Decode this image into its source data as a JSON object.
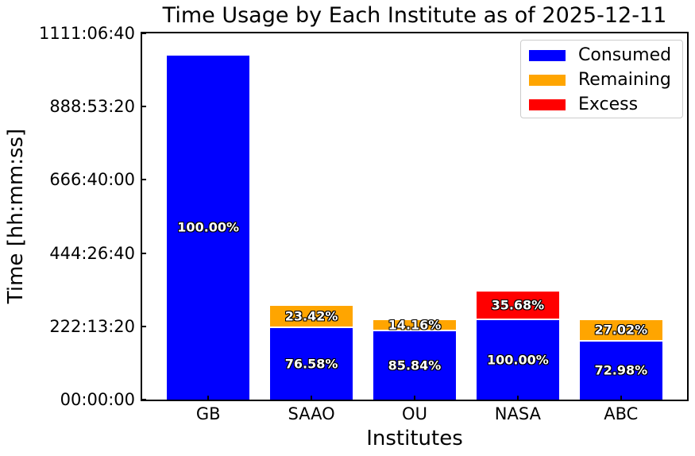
{
  "chart_data": {
    "type": "bar",
    "stacked": true,
    "title": "Time Usage by Each Institute as of 2025-12-11",
    "xlabel": "Institutes",
    "ylabel": "Time [hh:mm:ss]",
    "categories": [
      "GB",
      "SAAO",
      "OU",
      "NASA",
      "ABC"
    ],
    "y_axis": {
      "unit": "seconds",
      "ylim": [
        0,
        4000000
      ],
      "tick_seconds": [
        0,
        800000,
        1600000,
        2400000,
        3200000,
        4000000
      ],
      "tick_labels": [
        "00:00:00",
        "222:13:20",
        "444:26:40",
        "666:40:00",
        "888:53:20",
        "1111:06:40"
      ],
      "grid": false
    },
    "legend": {
      "position": "upper right",
      "entries": [
        {
          "label": "Consumed",
          "color": "#0000ff"
        },
        {
          "label": "Remaining",
          "color": "#ffa500"
        },
        {
          "label": "Excess",
          "color": "#ff0000"
        }
      ]
    },
    "bars": [
      {
        "category": "GB",
        "segments": [
          {
            "series": "Consumed",
            "seconds": 3760000,
            "label": "100.00%"
          }
        ]
      },
      {
        "category": "SAAO",
        "segments": [
          {
            "series": "Consumed",
            "seconds": 781116,
            "label": "76.58%"
          },
          {
            "series": "Remaining",
            "seconds": 238884,
            "label": "23.42%"
          }
        ]
      },
      {
        "category": "OU",
        "segments": [
          {
            "series": "Consumed",
            "seconds": 745091,
            "label": "85.84%"
          },
          {
            "series": "Remaining",
            "seconds": 122909,
            "label": "14.16%"
          }
        ]
      },
      {
        "category": "NASA",
        "segments": [
          {
            "series": "Consumed",
            "seconds": 868000,
            "label": "100.00%"
          },
          {
            "series": "Excess",
            "seconds": 309702,
            "label": "35.68%"
          }
        ]
      },
      {
        "category": "ABC",
        "segments": [
          {
            "series": "Consumed",
            "seconds": 634926,
            "label": "72.98%"
          },
          {
            "series": "Remaining",
            "seconds": 235074,
            "label": "27.02%"
          }
        ]
      }
    ]
  }
}
